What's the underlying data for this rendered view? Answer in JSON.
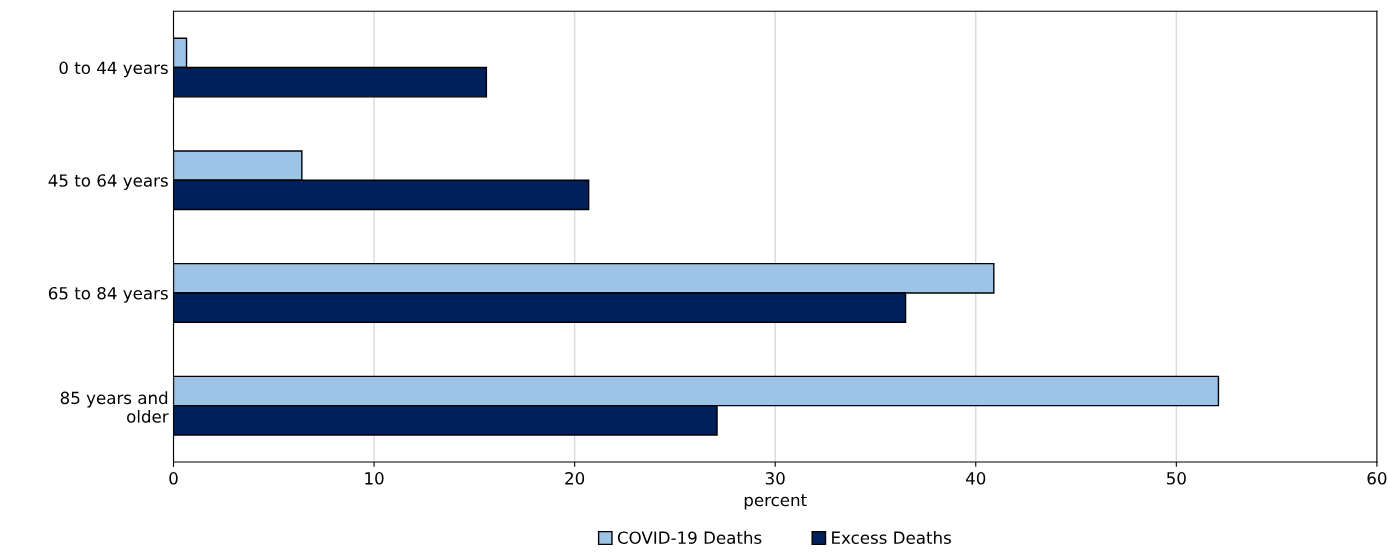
{
  "chart_data": {
    "type": "bar",
    "orientation": "horizontal",
    "xlabel": "percent",
    "categories": [
      "0 to 44 years",
      "45 to 64 years",
      "65 to 84 years",
      "85 years and\nolder"
    ],
    "series": [
      {
        "name": "COVID-19 Deaths",
        "color": "#9dc3e6",
        "values": [
          0.65,
          6.4,
          40.9,
          52.1
        ]
      },
      {
        "name": "Excess Deaths",
        "color": "#00205b",
        "values": [
          15.6,
          20.7,
          36.5,
          27.1
        ]
      }
    ],
    "xlim": [
      0,
      60
    ],
    "xticks": [
      0,
      10,
      20,
      30,
      40,
      50,
      60
    ],
    "grid": "x",
    "legend": "bottom"
  }
}
